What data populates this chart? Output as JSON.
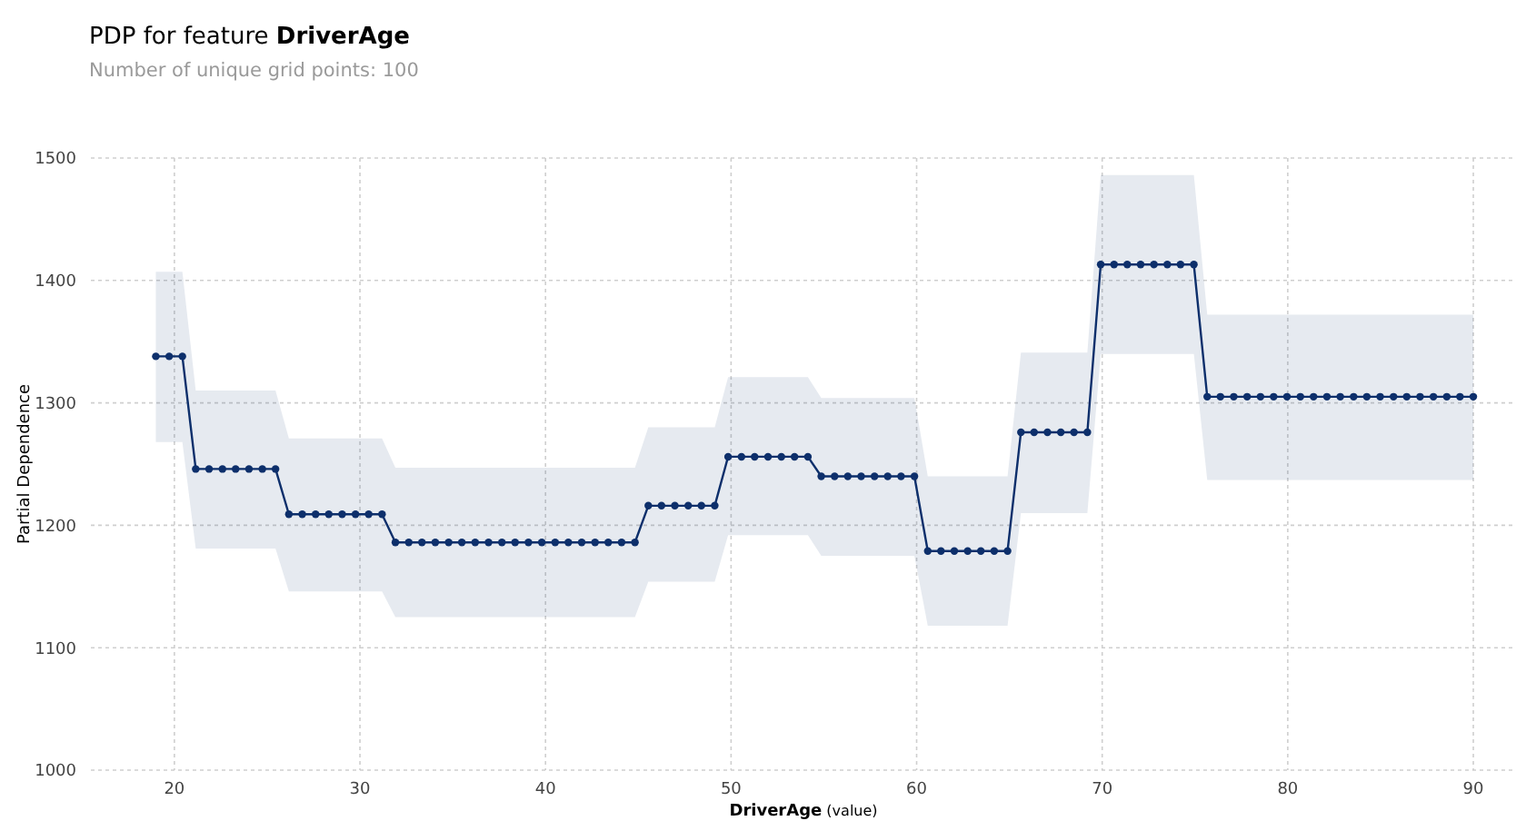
{
  "chart_data": {
    "type": "line",
    "title": "PDP for feature DriverAge",
    "subtitle": "Number of unique grid points: 100",
    "xlabel": "DriverAge (value)",
    "ylabel": "Partial Dependence",
    "x": [
      19.0,
      19.72,
      20.43,
      21.15,
      21.87,
      22.59,
      23.3,
      24.02,
      24.74,
      25.45,
      26.17,
      26.89,
      27.61,
      28.32,
      29.04,
      29.76,
      30.47,
      31.19,
      31.91,
      32.63,
      33.34,
      34.06,
      34.78,
      35.49,
      36.21,
      36.93,
      37.65,
      38.36,
      39.08,
      39.8,
      40.52,
      41.23,
      41.95,
      42.67,
      43.38,
      44.1,
      44.82,
      45.54,
      46.25,
      46.97,
      47.69,
      48.4,
      49.12,
      49.84,
      50.56,
      51.27,
      51.99,
      52.71,
      53.42,
      54.14,
      54.86,
      55.58,
      56.29,
      57.01,
      57.73,
      58.44,
      59.16,
      59.88,
      60.6,
      61.31,
      62.03,
      62.75,
      63.46,
      64.18,
      64.9,
      65.62,
      66.33,
      67.05,
      67.77,
      68.48,
      69.2,
      69.92,
      70.64,
      71.35,
      72.07,
      72.79,
      73.51,
      74.22,
      74.94,
      75.66,
      76.37,
      77.09,
      77.81,
      78.53,
      79.24,
      79.96,
      80.68,
      81.39,
      82.11,
      82.83,
      83.55,
      84.26,
      84.98,
      85.7,
      86.41,
      87.13,
      87.85,
      88.57,
      89.28,
      90.0
    ],
    "series": [
      {
        "color": "#0d2f6b",
        "values": [
          1338,
          1338,
          1338,
          1246,
          1246,
          1246,
          1246,
          1246,
          1246,
          1246,
          1209,
          1209,
          1209,
          1209,
          1209,
          1209,
          1209,
          1209,
          1186,
          1186,
          1186,
          1186,
          1186,
          1186,
          1186,
          1186,
          1186,
          1186,
          1186,
          1186,
          1186,
          1186,
          1186,
          1186,
          1186,
          1186,
          1186,
          1216,
          1216,
          1216,
          1216,
          1216,
          1216,
          1256,
          1256,
          1256,
          1256,
          1256,
          1256,
          1256,
          1240,
          1240,
          1240,
          1240,
          1240,
          1240,
          1240,
          1240,
          1179,
          1179,
          1179,
          1179,
          1179,
          1179,
          1179,
          1276,
          1276,
          1276,
          1276,
          1276,
          1276,
          1413,
          1413,
          1413,
          1413,
          1413,
          1413,
          1413,
          1413,
          1305,
          1305,
          1305,
          1305,
          1305,
          1305,
          1305,
          1305,
          1305,
          1305,
          1305,
          1305,
          1305,
          1305,
          1305,
          1305,
          1305,
          1305,
          1305,
          1305,
          1305
        ],
        "lower": [
          1268,
          1268,
          1268,
          1181,
          1181,
          1181,
          1181,
          1181,
          1181,
          1181,
          1146,
          1146,
          1146,
          1146,
          1146,
          1146,
          1146,
          1146,
          1125,
          1125,
          1125,
          1125,
          1125,
          1125,
          1125,
          1125,
          1125,
          1125,
          1125,
          1125,
          1125,
          1125,
          1125,
          1125,
          1125,
          1125,
          1125,
          1154,
          1154,
          1154,
          1154,
          1154,
          1154,
          1192,
          1192,
          1192,
          1192,
          1192,
          1192,
          1192,
          1175,
          1175,
          1175,
          1175,
          1175,
          1175,
          1175,
          1175,
          1118,
          1118,
          1118,
          1118,
          1118,
          1118,
          1118,
          1210,
          1210,
          1210,
          1210,
          1210,
          1210,
          1340,
          1340,
          1340,
          1340,
          1340,
          1340,
          1340,
          1340,
          1237,
          1237,
          1237,
          1237,
          1237,
          1237,
          1237,
          1237,
          1237,
          1237,
          1237,
          1237,
          1237,
          1237,
          1237,
          1237,
          1237,
          1237,
          1237,
          1237,
          1237
        ],
        "upper": [
          1407,
          1407,
          1407,
          1310,
          1310,
          1310,
          1310,
          1310,
          1310,
          1310,
          1271,
          1271,
          1271,
          1271,
          1271,
          1271,
          1271,
          1271,
          1247,
          1247,
          1247,
          1247,
          1247,
          1247,
          1247,
          1247,
          1247,
          1247,
          1247,
          1247,
          1247,
          1247,
          1247,
          1247,
          1247,
          1247,
          1247,
          1280,
          1280,
          1280,
          1280,
          1280,
          1280,
          1321,
          1321,
          1321,
          1321,
          1321,
          1321,
          1321,
          1304,
          1304,
          1304,
          1304,
          1304,
          1304,
          1304,
          1304,
          1240,
          1240,
          1240,
          1240,
          1240,
          1240,
          1240,
          1341,
          1341,
          1341,
          1341,
          1341,
          1341,
          1486,
          1486,
          1486,
          1486,
          1486,
          1486,
          1486,
          1486,
          1372,
          1372,
          1372,
          1372,
          1372,
          1372,
          1372,
          1372,
          1372,
          1372,
          1372,
          1372,
          1372,
          1372,
          1372,
          1372,
          1372,
          1372,
          1372,
          1372,
          1372
        ]
      }
    ],
    "xlim": [
      15.5,
      92.3
    ],
    "xticks": [
      20,
      30,
      40,
      50,
      60,
      70,
      80,
      90
    ],
    "ylim": [
      1000,
      1500
    ],
    "yticks": [
      1000,
      1100,
      1200,
      1300,
      1400,
      1500
    ],
    "grid": true,
    "marker": "circle",
    "line_style": "solid"
  }
}
